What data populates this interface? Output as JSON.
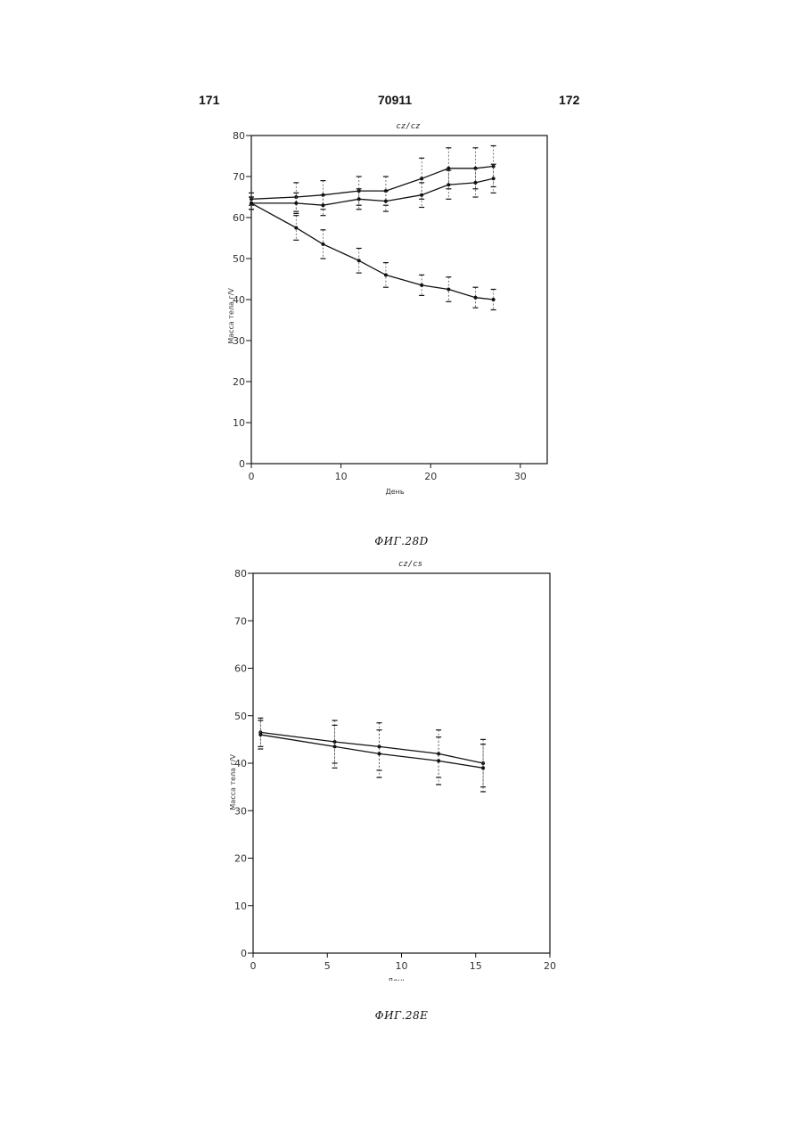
{
  "header": {
    "left": "171",
    "center": "70911",
    "right": "172"
  },
  "chart_data": [
    {
      "type": "line",
      "subtitle": "cz/cz",
      "xlabel": "День",
      "ylabel": "Масса тела г/V",
      "xlim": [
        0,
        33
      ],
      "ylim": [
        0,
        80
      ],
      "xticks": [
        0,
        10,
        20,
        30
      ],
      "yticks": [
        0,
        10,
        20,
        30,
        40,
        50,
        60,
        70,
        80
      ],
      "caption": "ФИГ.28D",
      "series": [
        {
          "x": [
            0,
            5,
            8,
            12,
            15,
            19,
            22,
            25,
            27
          ],
          "values": [
            64.5,
            65.0,
            65.5,
            66.5,
            66.5,
            69.5,
            72.0,
            72.0,
            72.5
          ],
          "errors": [
            1.5,
            3.5,
            3.5,
            3.5,
            3.5,
            5.0,
            5.0,
            5.0,
            5.0
          ]
        },
        {
          "x": [
            0,
            5,
            8,
            12,
            15,
            19,
            22,
            25,
            27
          ],
          "values": [
            63.5,
            63.5,
            63.0,
            64.5,
            64.0,
            65.5,
            68.0,
            68.5,
            69.5
          ],
          "errors": [
            1.5,
            2.5,
            2.5,
            2.5,
            2.5,
            3.0,
            3.5,
            3.5,
            3.5
          ]
        },
        {
          "x": [
            0,
            5,
            8,
            12,
            15,
            19,
            22,
            25,
            27
          ],
          "values": [
            63.5,
            57.5,
            53.5,
            49.5,
            46.0,
            43.5,
            42.5,
            40.5,
            40.0
          ],
          "errors": [
            1.5,
            3.0,
            3.5,
            3.0,
            3.0,
            2.5,
            3.0,
            2.5,
            2.5
          ]
        }
      ]
    },
    {
      "type": "line",
      "subtitle": "cz/cs",
      "xlabel": "День",
      "ylabel": "Масса тела г/V",
      "xlim": [
        0,
        20
      ],
      "ylim": [
        0,
        80
      ],
      "xticks": [
        0,
        5,
        10,
        15,
        20
      ],
      "yticks": [
        0,
        10,
        20,
        30,
        40,
        50,
        60,
        70,
        80
      ],
      "caption": "ФИГ.28E",
      "series": [
        {
          "x": [
            0.5,
            5.5,
            8.5,
            12.5,
            15.5
          ],
          "values": [
            46.5,
            44.5,
            43.5,
            42.0,
            40.0
          ],
          "errors": [
            3.0,
            4.5,
            5.0,
            5.0,
            5.0
          ]
        },
        {
          "x": [
            0.5,
            5.5,
            8.5,
            12.5,
            15.5
          ],
          "values": [
            46.0,
            43.5,
            42.0,
            40.5,
            39.0
          ],
          "errors": [
            3.0,
            4.5,
            5.0,
            5.0,
            5.0
          ]
        }
      ]
    }
  ]
}
